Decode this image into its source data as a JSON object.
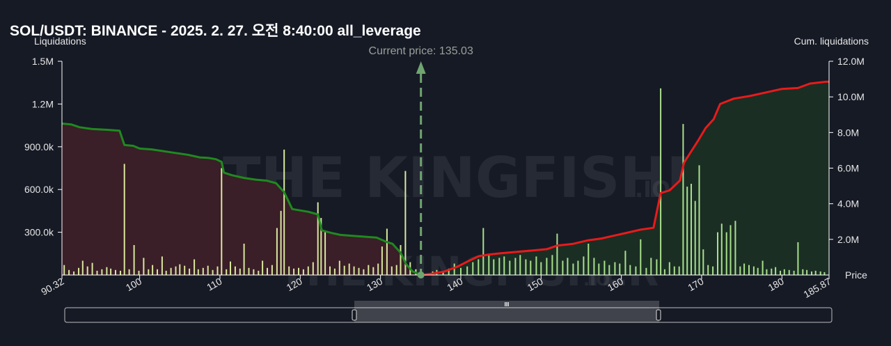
{
  "title": "SOL/USDT: BINANCE - 2025. 2. 27. 오전 8:40:00 all_leverage",
  "watermark": {
    "brand": "THE KINGFISHER",
    "suffix": ".IO"
  },
  "range_handle_glyph": "III",
  "chart_data": {
    "type": "bar+area",
    "title": "SOL/USDT: BINANCE - 2025. 2. 27. 오전 8:40:00 all_leverage",
    "x_label": "Price",
    "y_left_label": "Liquidations",
    "y_right_label": "Cum. liquidations",
    "x_range": [
      90.32,
      185.87
    ],
    "x_ticks": [
      {
        "v": 90.32,
        "label": "90.32"
      },
      {
        "v": 100,
        "label": "100"
      },
      {
        "v": 110,
        "label": "110"
      },
      {
        "v": 120,
        "label": "120"
      },
      {
        "v": 130,
        "label": "130"
      },
      {
        "v": 140,
        "label": "140"
      },
      {
        "v": 150,
        "label": "150"
      },
      {
        "v": 160,
        "label": "160"
      },
      {
        "v": 170,
        "label": "170"
      },
      {
        "v": 180,
        "label": "180"
      },
      {
        "v": 185.87,
        "label": "185.87"
      }
    ],
    "y_left_range": [
      0,
      1500000
    ],
    "y_left_ticks": [
      {
        "v": 300000,
        "label": "300.0k"
      },
      {
        "v": 600000,
        "label": "600.0k"
      },
      {
        "v": 900000,
        "label": "900.0k"
      },
      {
        "v": 1200000,
        "label": "1.2M"
      },
      {
        "v": 1500000,
        "label": "1.5M"
      }
    ],
    "y_right_range": [
      0,
      12000000
    ],
    "y_right_ticks": [
      {
        "v": 2000000,
        "label": "2.0M"
      },
      {
        "v": 4000000,
        "label": "4.0M"
      },
      {
        "v": 6000000,
        "label": "6.0M"
      },
      {
        "v": 8000000,
        "label": "8.0M"
      },
      {
        "v": 10000000,
        "label": "10.0M"
      },
      {
        "v": 12000000,
        "label": "12.0M"
      }
    ],
    "current_price": 135.03,
    "current_price_label": "Current price: 135.03",
    "colors": {
      "long_line": "#1f8a1f",
      "short_line": "#e81b1b",
      "long_fill": "#3a1e28",
      "short_fill": "#1b2e24",
      "bar": "#d8e89c",
      "bar_right": "#a8e08c",
      "price_marker": "#6fa66f"
    },
    "bars": [
      [
        90.6,
        70000
      ],
      [
        91.2,
        35000
      ],
      [
        91.8,
        25000
      ],
      [
        92.4,
        50000
      ],
      [
        92.9,
        100000
      ],
      [
        93.5,
        60000
      ],
      [
        94.1,
        85000
      ],
      [
        94.7,
        30000
      ],
      [
        95.3,
        40000
      ],
      [
        95.9,
        55000
      ],
      [
        96.4,
        45000
      ],
      [
        97.0,
        35000
      ],
      [
        97.6,
        30000
      ],
      [
        98.1,
        780000
      ],
      [
        98.7,
        40000
      ],
      [
        99.3,
        210000
      ],
      [
        99.9,
        30000
      ],
      [
        100.5,
        120000
      ],
      [
        101.1,
        40000
      ],
      [
        101.6,
        70000
      ],
      [
        102.2,
        40000
      ],
      [
        102.8,
        130000
      ],
      [
        103.3,
        30000
      ],
      [
        103.9,
        50000
      ],
      [
        104.5,
        60000
      ],
      [
        105.0,
        75000
      ],
      [
        105.6,
        65000
      ],
      [
        106.2,
        45000
      ],
      [
        106.8,
        110000
      ],
      [
        107.3,
        40000
      ],
      [
        107.9,
        50000
      ],
      [
        108.5,
        65000
      ],
      [
        109.1,
        35000
      ],
      [
        109.7,
        60000
      ],
      [
        110.2,
        750000
      ],
      [
        110.8,
        40000
      ],
      [
        111.3,
        95000
      ],
      [
        111.9,
        60000
      ],
      [
        112.5,
        45000
      ],
      [
        113.0,
        220000
      ],
      [
        113.6,
        50000
      ],
      [
        114.2,
        40000
      ],
      [
        114.8,
        30000
      ],
      [
        115.3,
        100000
      ],
      [
        115.9,
        50000
      ],
      [
        116.5,
        70000
      ],
      [
        117.1,
        330000
      ],
      [
        117.6,
        450000
      ],
      [
        118.0,
        880000
      ],
      [
        118.6,
        60000
      ],
      [
        119.2,
        45000
      ],
      [
        119.8,
        50000
      ],
      [
        120.4,
        40000
      ],
      [
        121.0,
        60000
      ],
      [
        121.6,
        90000
      ],
      [
        122.2,
        510000
      ],
      [
        122.6,
        400000
      ],
      [
        123.1,
        300000
      ],
      [
        123.7,
        60000
      ],
      [
        124.3,
        45000
      ],
      [
        124.9,
        100000
      ],
      [
        125.5,
        65000
      ],
      [
        126.1,
        80000
      ],
      [
        126.7,
        60000
      ],
      [
        127.3,
        50000
      ],
      [
        127.9,
        40000
      ],
      [
        128.5,
        70000
      ],
      [
        129.1,
        55000
      ],
      [
        129.7,
        80000
      ],
      [
        130.2,
        200000
      ],
      [
        130.8,
        325000
      ],
      [
        131.4,
        60000
      ],
      [
        132.0,
        70000
      ],
      [
        132.5,
        210000
      ],
      [
        133.1,
        730000
      ],
      [
        133.7,
        90000
      ],
      [
        134.4,
        40000
      ],
      [
        136.5,
        25000
      ],
      [
        137.0,
        35000
      ],
      [
        137.8,
        20000
      ],
      [
        138.5,
        45000
      ],
      [
        139.2,
        80000
      ],
      [
        140.0,
        50000
      ],
      [
        140.8,
        60000
      ],
      [
        141.5,
        90000
      ],
      [
        142.2,
        110000
      ],
      [
        142.8,
        330000
      ],
      [
        143.5,
        150000
      ],
      [
        144.1,
        110000
      ],
      [
        144.8,
        120000
      ],
      [
        145.4,
        130000
      ],
      [
        146.1,
        100000
      ],
      [
        146.8,
        120000
      ],
      [
        147.4,
        140000
      ],
      [
        148.1,
        110000
      ],
      [
        148.7,
        100000
      ],
      [
        149.4,
        130000
      ],
      [
        150.0,
        90000
      ],
      [
        150.7,
        120000
      ],
      [
        151.4,
        140000
      ],
      [
        152.0,
        290000
      ],
      [
        152.7,
        100000
      ],
      [
        153.3,
        120000
      ],
      [
        154.0,
        80000
      ],
      [
        154.6,
        100000
      ],
      [
        155.3,
        130000
      ],
      [
        155.9,
        220000
      ],
      [
        156.6,
        120000
      ],
      [
        157.2,
        80000
      ],
      [
        157.9,
        100000
      ],
      [
        158.5,
        70000
      ],
      [
        159.2,
        90000
      ],
      [
        159.8,
        80000
      ],
      [
        160.5,
        170000
      ],
      [
        161.1,
        70000
      ],
      [
        161.8,
        60000
      ],
      [
        162.4,
        250000
      ],
      [
        163.1,
        50000
      ],
      [
        163.7,
        120000
      ],
      [
        164.4,
        110000
      ],
      [
        164.9,
        1310000
      ],
      [
        165.4,
        40000
      ],
      [
        166.0,
        90000
      ],
      [
        166.6,
        60000
      ],
      [
        167.2,
        60000
      ],
      [
        167.7,
        1060000
      ],
      [
        168.2,
        620000
      ],
      [
        168.7,
        640000
      ],
      [
        169.2,
        520000
      ],
      [
        169.7,
        770000
      ],
      [
        170.2,
        180000
      ],
      [
        170.8,
        70000
      ],
      [
        171.4,
        60000
      ],
      [
        172.0,
        300000
      ],
      [
        172.5,
        360000
      ],
      [
        173.1,
        300000
      ],
      [
        173.6,
        350000
      ],
      [
        174.2,
        380000
      ],
      [
        174.8,
        60000
      ],
      [
        175.3,
        80000
      ],
      [
        175.9,
        70000
      ],
      [
        176.5,
        60000
      ],
      [
        177.0,
        50000
      ],
      [
        177.6,
        100000
      ],
      [
        178.1,
        40000
      ],
      [
        178.7,
        45000
      ],
      [
        179.2,
        55000
      ],
      [
        179.8,
        30000
      ],
      [
        180.3,
        40000
      ],
      [
        180.9,
        35000
      ],
      [
        181.5,
        30000
      ],
      [
        182.0,
        230000
      ],
      [
        182.6,
        40000
      ],
      [
        183.1,
        35000
      ],
      [
        183.7,
        25000
      ],
      [
        184.2,
        30000
      ],
      [
        184.8,
        25000
      ],
      [
        185.3,
        20000
      ]
    ],
    "cum_long": [
      [
        90.32,
        8.5
      ],
      [
        91.5,
        8.45
      ],
      [
        92.5,
        8.3
      ],
      [
        94.0,
        8.2
      ],
      [
        96.0,
        8.15
      ],
      [
        97.5,
        8.1
      ],
      [
        98.1,
        7.3
      ],
      [
        99.2,
        7.25
      ],
      [
        100.0,
        7.1
      ],
      [
        101.5,
        7.05
      ],
      [
        103.0,
        6.95
      ],
      [
        104.5,
        6.85
      ],
      [
        106.0,
        6.75
      ],
      [
        107.5,
        6.6
      ],
      [
        108.5,
        6.58
      ],
      [
        109.5,
        6.5
      ],
      [
        110.2,
        6.35
      ],
      [
        110.5,
        5.75
      ],
      [
        111.5,
        5.6
      ],
      [
        113.0,
        5.45
      ],
      [
        114.5,
        5.35
      ],
      [
        115.8,
        5.3
      ],
      [
        117.0,
        5.15
      ],
      [
        118.0,
        4.65
      ],
      [
        119.0,
        3.7
      ],
      [
        121.0,
        3.55
      ],
      [
        122.2,
        3.4
      ],
      [
        122.7,
        2.5
      ],
      [
        124.0,
        2.35
      ],
      [
        125.0,
        2.25
      ],
      [
        126.5,
        2.2
      ],
      [
        128.0,
        2.15
      ],
      [
        129.5,
        2.1
      ],
      [
        130.8,
        1.85
      ],
      [
        131.5,
        1.75
      ],
      [
        132.5,
        1.25
      ],
      [
        133.2,
        0.6
      ],
      [
        134.0,
        0.2
      ],
      [
        135.03,
        0.0
      ]
    ],
    "cum_short": [
      [
        135.03,
        0.0
      ],
      [
        136.5,
        0.08
      ],
      [
        138.0,
        0.2
      ],
      [
        139.5,
        0.45
      ],
      [
        140.8,
        0.75
      ],
      [
        142.2,
        1.05
      ],
      [
        143.5,
        1.15
      ],
      [
        145.0,
        1.22
      ],
      [
        147.0,
        1.3
      ],
      [
        149.0,
        1.38
      ],
      [
        150.7,
        1.45
      ],
      [
        152.0,
        1.65
      ],
      [
        154.0,
        1.75
      ],
      [
        155.9,
        1.95
      ],
      [
        157.5,
        2.05
      ],
      [
        159.0,
        2.2
      ],
      [
        160.5,
        2.35
      ],
      [
        162.4,
        2.55
      ],
      [
        164.0,
        2.65
      ],
      [
        164.9,
        4.6
      ],
      [
        166.0,
        4.75
      ],
      [
        167.3,
        5.3
      ],
      [
        167.8,
        6.3
      ],
      [
        168.5,
        6.8
      ],
      [
        169.5,
        7.5
      ],
      [
        170.5,
        8.25
      ],
      [
        171.5,
        8.75
      ],
      [
        172.3,
        9.6
      ],
      [
        174.0,
        9.9
      ],
      [
        176.0,
        10.05
      ],
      [
        178.0,
        10.25
      ],
      [
        180.0,
        10.45
      ],
      [
        182.0,
        10.5
      ],
      [
        183.5,
        10.75
      ],
      [
        185.5,
        10.85
      ],
      [
        185.87,
        10.85
      ]
    ]
  }
}
